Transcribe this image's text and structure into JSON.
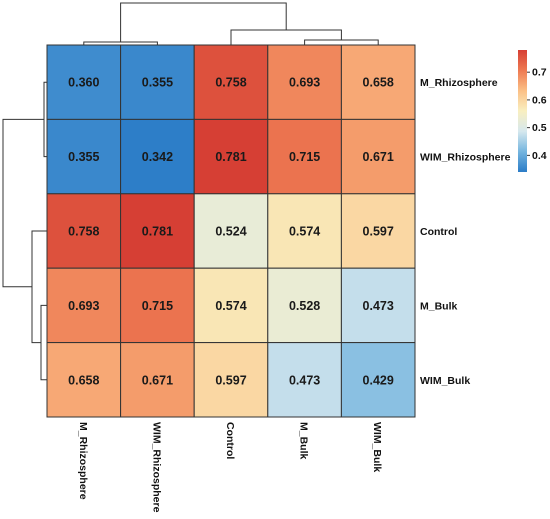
{
  "chart_data": {
    "type": "heatmap",
    "title": "",
    "xlabel": "",
    "ylabel": "",
    "rows": [
      "M_Rhizosphere",
      "WIM_Rhizosphere",
      "Control",
      "M_Bulk",
      "WIM_Bulk"
    ],
    "columns": [
      "M_Rhizosphere",
      "WIM_Rhizosphere",
      "Control",
      "M_Bulk",
      "WIM_Bulk"
    ],
    "values": [
      [
        0.36,
        0.355,
        0.758,
        0.693,
        0.658
      ],
      [
        0.355,
        0.342,
        0.781,
        0.715,
        0.671
      ],
      [
        0.758,
        0.781,
        0.524,
        0.574,
        0.597
      ],
      [
        0.693,
        0.715,
        0.574,
        0.528,
        0.473
      ],
      [
        0.658,
        0.671,
        0.597,
        0.473,
        0.429
      ]
    ],
    "value_labels": [
      [
        "0.360",
        "0.355",
        "0.758",
        "0.693",
        "0.658"
      ],
      [
        "0.355",
        "0.342",
        "0.781",
        "0.715",
        "0.671"
      ],
      [
        "0.758",
        "0.781",
        "0.524",
        "0.574",
        "0.597"
      ],
      [
        "0.693",
        "0.715",
        "0.574",
        "0.528",
        "0.473"
      ],
      [
        "0.658",
        "0.671",
        "0.597",
        "0.473",
        "0.429"
      ]
    ],
    "color_scale": {
      "min": 0.34,
      "max": 0.78,
      "colors": [
        "#2b7cc7",
        "#75b5df",
        "#d6e8ee",
        "#f9efc0",
        "#fbc086",
        "#ee7a52",
        "#d63f34"
      ]
    },
    "legend": {
      "placement": "right",
      "ticks": [
        0.4,
        0.5,
        0.6,
        0.7
      ],
      "tick_labels": [
        "0.4",
        "0.5",
        "0.6",
        "0.7"
      ]
    },
    "dendrogram": {
      "clusters": [
        [
          "M_Rhizosphere",
          "WIM_Rhizosphere"
        ],
        [
          "M_Bulk",
          "WIM_Bulk"
        ],
        [
          "Control",
          "M_Bulk",
          "WIM_Bulk"
        ],
        [
          "M_Rhizosphere",
          "WIM_Rhizosphere",
          "Control",
          "M_Bulk",
          "WIM_Bulk"
        ]
      ]
    }
  }
}
